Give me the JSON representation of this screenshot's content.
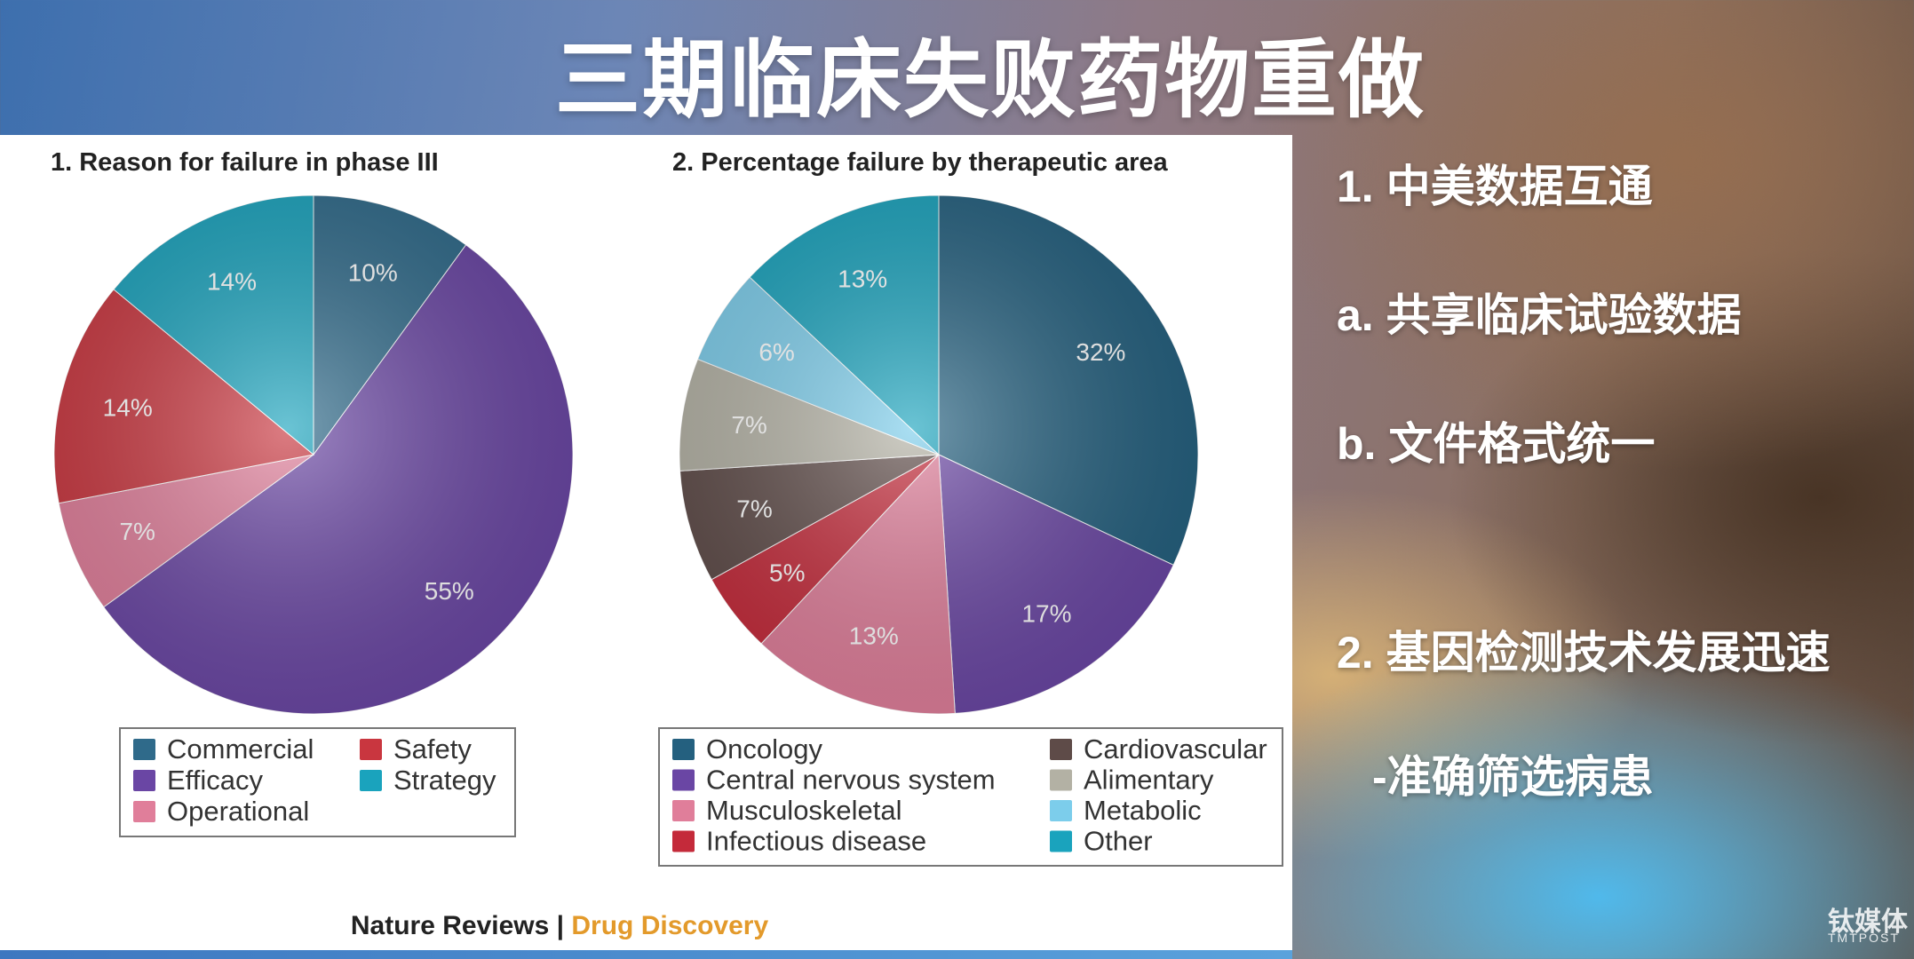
{
  "slide": {
    "title": "三期临床失败药物重做",
    "bullets": [
      "1. 中美数据互通",
      "a. 共享临床试验数据",
      "b. 文件格式统一",
      "2. 基因检测技术发展迅速",
      "-准确筛选病患"
    ],
    "watermark": "钛媒体",
    "watermark_sub": "TMTPOST"
  },
  "source": {
    "journal": "Nature Reviews",
    "separator": " | ",
    "section": "Drug Discovery",
    "journal_color": "#222222",
    "section_color": "#e39a2b"
  },
  "chart_data": [
    {
      "type": "pie",
      "title": "1. Reason for failure in phase III",
      "slices": [
        {
          "label": "Commercial",
          "value": 10,
          "label_text": "10%",
          "color": "#2f6a8a"
        },
        {
          "label": "Efficacy",
          "value": 55,
          "label_text": "55%",
          "color": "#6a46a4"
        },
        {
          "label": "Operational",
          "value": 7,
          "label_text": "7%",
          "color": "#e07e9a"
        },
        {
          "label": "Safety",
          "value": 14,
          "label_text": "14%",
          "color": "#c9363f"
        },
        {
          "label": "Strategy",
          "value": 14,
          "label_text": "14%",
          "color": "#1aa3bd"
        }
      ],
      "legend": {
        "placement": "bottom",
        "columns": [
          [
            "Commercial",
            "Efficacy",
            "Operational"
          ],
          [
            "Safety",
            "Strategy"
          ]
        ]
      }
    },
    {
      "type": "pie",
      "title": "2. Percentage failure by therapeutic area",
      "slices": [
        {
          "label": "Oncology",
          "value": 32,
          "label_text": "32%",
          "color": "#24607f"
        },
        {
          "label": "Central nervous system",
          "value": 17,
          "label_text": "17%",
          "color": "#6a46a4"
        },
        {
          "label": "Musculoskeletal",
          "value": 13,
          "label_text": "13%",
          "color": "#e07e9a"
        },
        {
          "label": "Infectious disease",
          "value": 5,
          "label_text": "5%",
          "color": "#c42a3a"
        },
        {
          "label": "Cardiovascular",
          "value": 7,
          "label_text": "7%",
          "color": "#5e4b48"
        },
        {
          "label": "Alimentary",
          "value": 7,
          "label_text": "7%",
          "color": "#b3b1a4"
        },
        {
          "label": "Metabolic",
          "value": 6,
          "label_text": "6%",
          "color": "#7ccdeb"
        },
        {
          "label": "Other",
          "value": 13,
          "label_text": "13%",
          "color": "#1aa3bd"
        }
      ],
      "legend": {
        "placement": "bottom",
        "columns": [
          [
            "Oncology",
            "Central nervous system",
            "Musculoskeletal",
            "Infectious disease"
          ],
          [
            "Cardiovascular",
            "Alimentary",
            "Metabolic",
            "Other"
          ]
        ]
      }
    }
  ]
}
